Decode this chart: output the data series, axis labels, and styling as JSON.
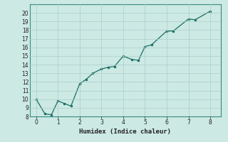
{
  "x": [
    0,
    0.4,
    0.7,
    1.0,
    1.3,
    1.6,
    2.0,
    2.3,
    2.6,
    3.0,
    3.3,
    3.6,
    4.0,
    4.4,
    4.7,
    5.0,
    5.3,
    6.0,
    6.3,
    7.0,
    7.3,
    8.0
  ],
  "y": [
    10,
    8.3,
    8.2,
    9.8,
    9.5,
    9.2,
    11.8,
    12.3,
    13.0,
    13.5,
    13.7,
    13.8,
    15.0,
    14.6,
    14.5,
    16.1,
    16.3,
    17.9,
    17.9,
    19.3,
    19.2,
    20.2
  ],
  "xlabel": "Humidex (Indice chaleur)",
  "xlim": [
    -0.3,
    8.5
  ],
  "ylim": [
    8,
    21
  ],
  "yticks": [
    8,
    9,
    10,
    11,
    12,
    13,
    14,
    15,
    16,
    17,
    18,
    19,
    20
  ],
  "xticks": [
    0,
    1,
    2,
    3,
    4,
    5,
    6,
    7,
    8
  ],
  "line_color": "#1a6e62",
  "marker_color": "#1a6e62",
  "bg_color": "#cce9e4",
  "grid_color": "#aacfca",
  "spine_color": "#3a8a80"
}
